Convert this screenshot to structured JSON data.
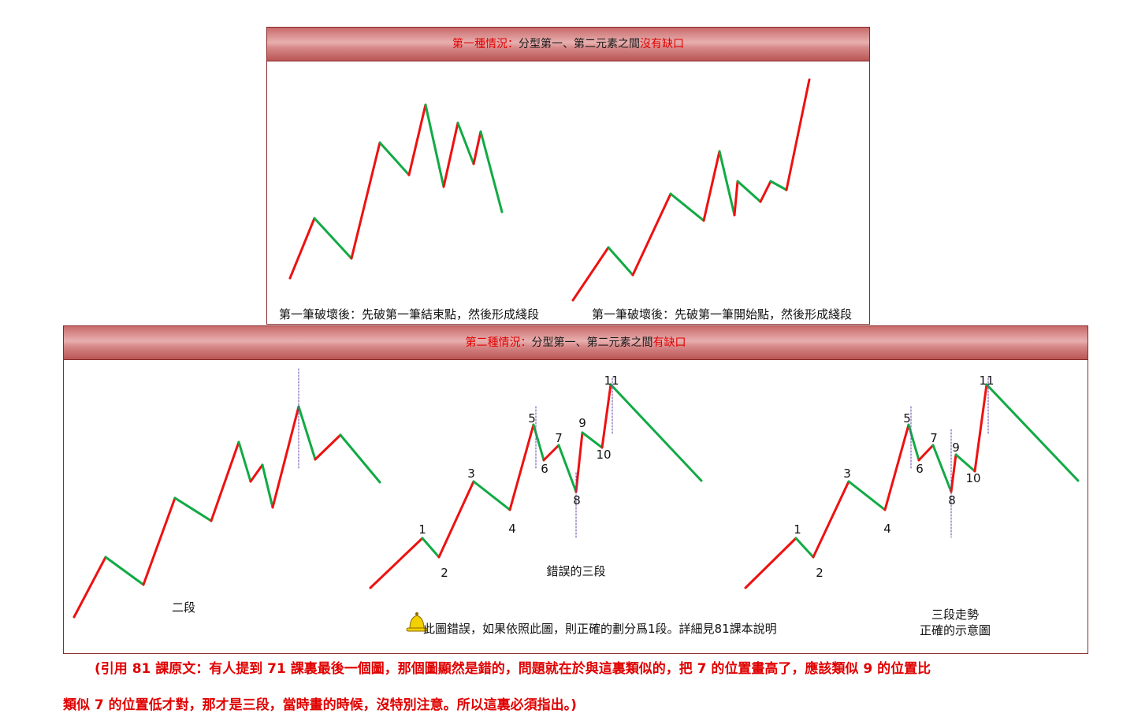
{
  "panel1": {
    "title_red1": "第一種情況：",
    "title_dark": "分型第一、第二元素之間",
    "title_red2": "沒有缺口",
    "caption_left": "第一筆破壞後：先破第一筆結束點，然後形成綫段",
    "caption_right": "第一筆破壞後：先破第一筆開始點，然後形成綫段"
  },
  "panel2": {
    "title_red1": "第二種情況：",
    "title_dark": "分型第一、第二元素之間",
    "title_red2": "有缺口",
    "caption_left": "二段",
    "caption_mid": "錯誤的三段",
    "caption_right_line1": "三段走勢",
    "caption_right_line2": "正確的示意圖",
    "warning_text": "此圖錯誤，如果依照此圖，則正確的劃分爲1段。詳細見81課本說明",
    "mid_labels": [
      "1",
      "2",
      "3",
      "4",
      "5",
      "6",
      "7",
      "8",
      "9",
      "10",
      "11"
    ],
    "right_labels": [
      "1",
      "2",
      "3",
      "4",
      "5",
      "6",
      "7",
      "8",
      "9",
      "10",
      "11"
    ]
  },
  "note": {
    "line1": "(引用 81 課原文：有人提到 71 課裏最後一個圖，那個圖顯然是錯的，問題就在於與這裏類似的，把 7 的位置畫高了，應該類似 9 的位置比",
    "line2": "類似 7 的位置低才對，那才是三段，當時畫的時候，沒特別注意。所以這裏必須指出。)"
  },
  "colors": {
    "up": "#ee1111",
    "down": "#11aa44",
    "marker": "#6644aa",
    "note": "#e00000"
  }
}
